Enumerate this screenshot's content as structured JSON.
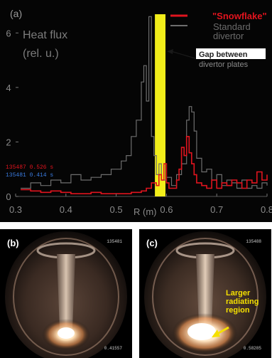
{
  "chart_data": {
    "type": "line",
    "panel_label": "(a)",
    "ylabel_line1": "Heat flux",
    "ylabel_line2": "(rel. u.)",
    "xlabel": "R (m)",
    "xlim": [
      0.3,
      0.8
    ],
    "ylim": [
      0,
      7
    ],
    "x_ticks": [
      "0.3",
      "0.4",
      "0.5",
      "0.6",
      "0.7",
      "0.8"
    ],
    "x_tick_values": [
      0.3,
      0.4,
      0.5,
      0.6,
      0.7,
      0.8
    ],
    "y_ticks": [
      "0",
      "2",
      "4",
      "6"
    ],
    "y_tick_values": [
      0,
      2,
      4,
      6
    ],
    "legend_placement": "top-right",
    "colors": {
      "snowflake": "#e0141e",
      "standard": "#6e6e6e",
      "gap": "#f2ee1a"
    },
    "series": [
      {
        "name": "\"Snowflake\"",
        "color": "#e0141e",
        "x": [
          0.31,
          0.33,
          0.35,
          0.37,
          0.39,
          0.41,
          0.43,
          0.45,
          0.47,
          0.49,
          0.51,
          0.53,
          0.55,
          0.56,
          0.57,
          0.58,
          0.585,
          0.59,
          0.595,
          0.6,
          0.605,
          0.61,
          0.615,
          0.62,
          0.625,
          0.63,
          0.635,
          0.64,
          0.645,
          0.65,
          0.655,
          0.66,
          0.67,
          0.68,
          0.69,
          0.7,
          0.71,
          0.72,
          0.73,
          0.74,
          0.75,
          0.76,
          0.77,
          0.78,
          0.79,
          0.8
        ],
        "y": [
          0.25,
          0.2,
          0.15,
          0.2,
          0.15,
          0.1,
          0.1,
          0.15,
          0.1,
          0.1,
          0.1,
          0.15,
          0.2,
          0.3,
          0.5,
          0.4,
          0.8,
          0.6,
          1.2,
          0.5,
          0.3,
          0.3,
          0.3,
          0.6,
          1.0,
          1.8,
          1.5,
          2.2,
          1.6,
          1.2,
          0.8,
          0.5,
          0.4,
          0.3,
          0.6,
          0.3,
          0.5,
          0.4,
          0.6,
          0.5,
          0.3,
          0.6,
          0.5,
          0.9,
          0.6,
          0.8
        ]
      },
      {
        "name": "Standard divertor",
        "color": "#6e6e6e",
        "x": [
          0.31,
          0.33,
          0.35,
          0.37,
          0.39,
          0.41,
          0.43,
          0.45,
          0.47,
          0.49,
          0.51,
          0.52,
          0.53,
          0.54,
          0.55,
          0.555,
          0.56,
          0.565,
          0.57,
          0.575,
          0.58,
          0.585,
          0.59,
          0.6,
          0.61,
          0.62,
          0.63,
          0.64,
          0.645,
          0.65,
          0.655,
          0.66,
          0.67,
          0.68,
          0.69,
          0.7,
          0.71,
          0.72,
          0.73,
          0.74,
          0.75,
          0.76,
          0.77,
          0.78,
          0.79,
          0.8
        ],
        "y": [
          0.3,
          0.5,
          0.4,
          0.6,
          0.5,
          0.8,
          0.6,
          0.7,
          0.8,
          1.0,
          1.3,
          1.5,
          2.2,
          2.8,
          4.2,
          4.8,
          3.5,
          6.6,
          2.2,
          1.5,
          0.8,
          1.2,
          0.6,
          0.7,
          0.4,
          0.8,
          1.2,
          2.8,
          3.3,
          3.1,
          2.4,
          1.4,
          0.9,
          1.0,
          0.6,
          0.8,
          0.4,
          0.6,
          0.5,
          0.3,
          0.6,
          0.3,
          0.4,
          0.3,
          0.5,
          0.4
        ]
      }
    ],
    "gap_region": {
      "x0": 0.577,
      "x1": 0.598,
      "label_line1": "Gap between",
      "label_line2": "divertor plates"
    },
    "legend_lines": {
      "snowflake": "\"Snowflake\"",
      "standard_1": "Standard",
      "standard_2": "divertor"
    },
    "shot_annotations": {
      "snowflake": "135487 0.526 s",
      "standard": "135481 0.414 s"
    }
  },
  "photos": {
    "b": {
      "label": "(b)",
      "shot": "135481",
      "time": "0.41557",
      "brightness": 1.0
    },
    "c": {
      "label": "(c)",
      "shot": "135488",
      "time": "0.58285",
      "annotation_line1": "Larger",
      "annotation_line2": "radiating",
      "annotation_line3": "region",
      "annotation_color": "#f5e000",
      "brightness": 1.25
    }
  }
}
